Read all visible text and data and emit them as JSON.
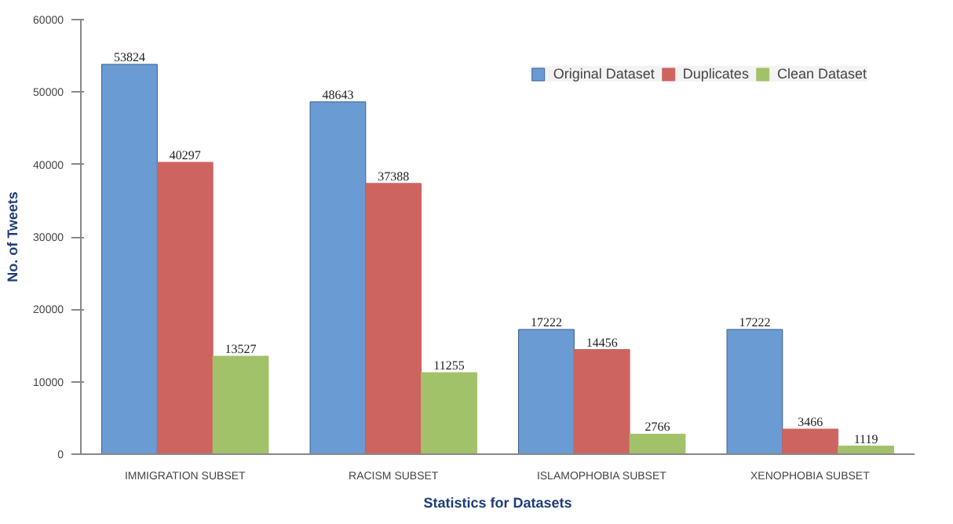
{
  "chart_data": {
    "type": "bar",
    "xlabel": "Statistics for Datasets",
    "ylabel": "No. of Tweets",
    "categories": [
      "IMMIGRATION SUBSET",
      "RACISM SUBSET",
      "ISLAMOPHOBIA SUBSET",
      "XENOPHOBIA SUBSET"
    ],
    "series": [
      {
        "name": "Original Dataset",
        "color": "#6b9bd3",
        "values": [
          53824,
          48643,
          17222,
          17222
        ]
      },
      {
        "name": "Duplicates",
        "color": "#cd6460",
        "values": [
          40297,
          37388,
          14456,
          3466
        ]
      },
      {
        "name": "Clean Dataset",
        "color": "#a2c26a",
        "values": [
          13527,
          11255,
          2766,
          1119
        ]
      }
    ],
    "ylim": [
      0,
      60000
    ],
    "yticks": [
      0,
      10000,
      20000,
      30000,
      40000,
      50000,
      60000
    ],
    "grid": false,
    "legend": "top right",
    "data_labels": true
  }
}
